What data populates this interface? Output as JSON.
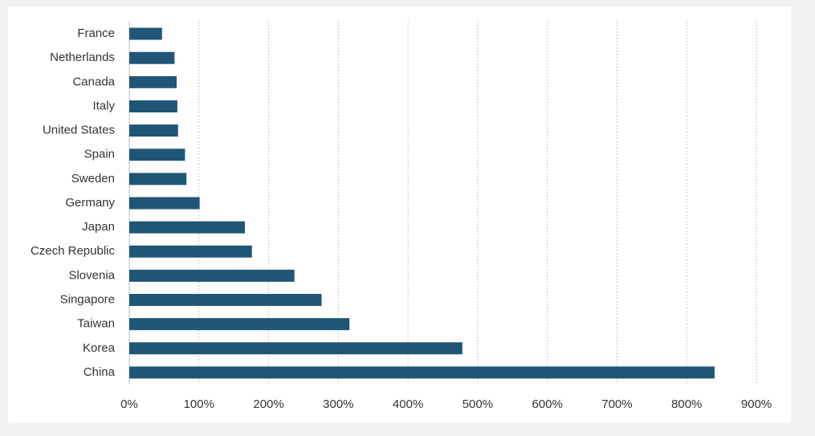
{
  "chart_data": {
    "type": "bar",
    "orientation": "horizontal",
    "categories": [
      "France",
      "Netherlands",
      "Canada",
      "Italy",
      "United States",
      "Spain",
      "Sweden",
      "Germany",
      "Japan",
      "Czech Republic",
      "Slovenia",
      "Singapore",
      "Taiwan",
      "Korea",
      "China"
    ],
    "values": [
      47,
      65,
      68,
      69,
      70,
      80,
      82,
      101,
      166,
      176,
      237,
      276,
      316,
      478,
      840
    ],
    "color": "#1f5678",
    "xlim": [
      0,
      900
    ],
    "xticks": [
      {
        "value": 0,
        "label": "0%"
      },
      {
        "value": 100,
        "label": "100%"
      },
      {
        "value": 200,
        "label": "200%"
      },
      {
        "value": 300,
        "label": "300%"
      },
      {
        "value": 400,
        "label": "400%"
      },
      {
        "value": 500,
        "label": "500%"
      },
      {
        "value": 600,
        "label": "600%"
      },
      {
        "value": 700,
        "label": "700%"
      },
      {
        "value": 800,
        "label": "800%"
      },
      {
        "value": 900,
        "label": "900%"
      }
    ],
    "grid": true
  }
}
